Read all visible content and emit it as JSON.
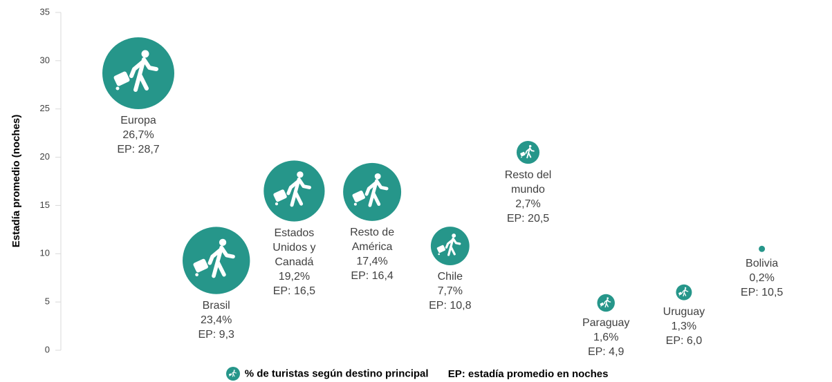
{
  "chart_data": {
    "type": "bubble",
    "ylabel": "Estadía promedio (noches)",
    "categories": [
      "Europa",
      "Brasil",
      "Estados Unidos y Canadá",
      "Resto de América",
      "Chile",
      "Resto del mundo",
      "Paraguay",
      "Uruguay",
      "Bolivia"
    ],
    "series": [
      {
        "name": "% de turistas según destino principal",
        "color": "#26968a",
        "values": [
          28.7,
          9.3,
          16.5,
          16.4,
          10.8,
          20.5,
          4.9,
          6.0,
          10.5
        ],
        "value_labels": [
          "EP: 28,7",
          "EP: 9,3",
          "EP: 16,5",
          "EP: 16,4",
          "EP: 10,8",
          "EP: 20,5",
          "EP: 4,9",
          "EP: 6,0",
          "EP: 10,5"
        ],
        "sizes": [
          26.7,
          23.4,
          19.2,
          17.4,
          7.7,
          2.7,
          1.6,
          1.3,
          0.2
        ],
        "size_labels": [
          "26,7%",
          "23,4%",
          "19,2%",
          "17,4%",
          "7,7%",
          "2,7%",
          "1,6%",
          "1,3%",
          "0,2%"
        ]
      }
    ],
    "legend_note": "EP: estadía promedio en noches",
    "ylim": [
      0,
      35
    ],
    "yticks": [
      0,
      5,
      10,
      15,
      20,
      25,
      30,
      35
    ]
  }
}
